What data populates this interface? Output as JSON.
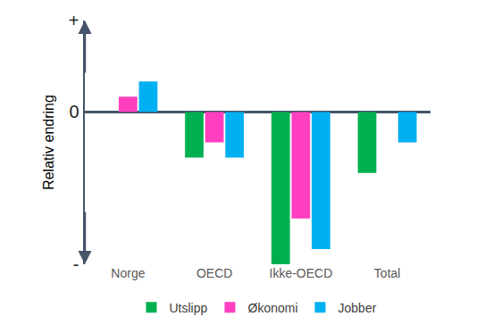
{
  "chart_data": {
    "type": "bar",
    "categories": [
      "Norge",
      "OECD",
      "Ikke-OECD",
      "Total"
    ],
    "series": [
      {
        "name": "Utslipp",
        "color": "#00b050",
        "values": [
          0,
          -1.5,
          -5,
          -2
        ]
      },
      {
        "name": "Økonomi",
        "color": "#ff3fbf",
        "values": [
          0.5,
          -1,
          -3.5,
          0
        ]
      },
      {
        "name": "Jobber",
        "color": "#00b0f0",
        "values": [
          1,
          -1.5,
          -4.5,
          -1
        ]
      }
    ],
    "y_label": "Relativ endring",
    "ylim": [
      -5,
      3
    ],
    "yticks": [
      {
        "value": -5,
        "label": "-"
      },
      0,
      {
        "value": 3,
        "label": "+"
      }
    ],
    "grid": true,
    "legend": "bottom"
  }
}
